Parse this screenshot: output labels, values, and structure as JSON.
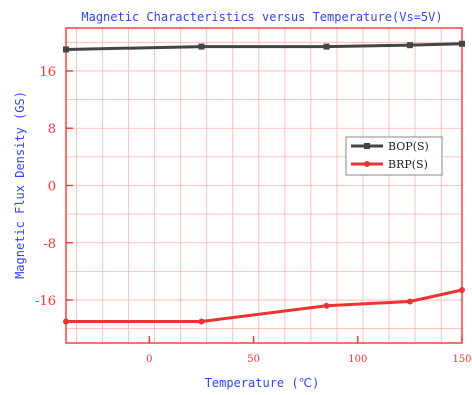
{
  "chart_data": {
    "type": "line",
    "title": "Magnetic Characteristics versus Temperature(Vs=5V)",
    "xlabel": "Temperature (℃)",
    "ylabel": "Magnetic Flux Density (GS)",
    "xlim": [
      -40,
      150
    ],
    "ylim": [
      -22,
      22
    ],
    "x_ticks": [
      0,
      50,
      100,
      150
    ],
    "y_ticks": [
      16,
      8,
      0,
      -8,
      -16
    ],
    "grid": true,
    "legend_position": "right",
    "series": [
      {
        "name": "BOP(S)",
        "color": "#444444",
        "marker": "square",
        "x": [
          -40,
          25,
          85,
          125,
          150
        ],
        "y": [
          19.0,
          19.4,
          19.4,
          19.6,
          19.8
        ]
      },
      {
        "name": "BRP(S)",
        "color": "#ee3333",
        "marker": "circle",
        "x": [
          -40,
          25,
          85,
          125,
          150
        ],
        "y": [
          -19.0,
          -19.0,
          -16.8,
          -16.2,
          -14.6
        ]
      }
    ],
    "colors": {
      "axis": "#ff3333",
      "grid": "#ffb3b3",
      "title": "#3344ff"
    }
  }
}
